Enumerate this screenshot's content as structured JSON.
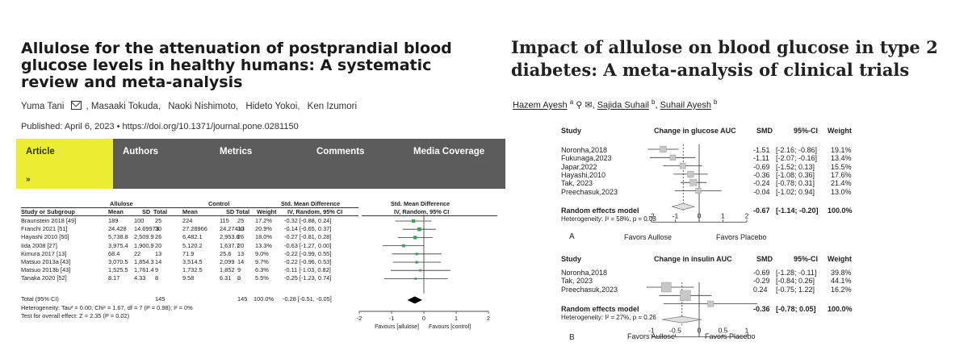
{
  "left": {
    "title": "Allulose for the attenuation of postprandial blood glucose levels in healthy humans: A systematic review and meta-analysis",
    "authors": [
      "Yuma Tani",
      "Masaaki Tokuda,",
      "Naoki Nishimoto,",
      "Hideto Yokoi,",
      "Ken Izumori"
    ],
    "published": "Published: April 6, 2023  •  https://doi.org/10.1371/journal.pone.0281150",
    "tabs": [
      {
        "label": "Article",
        "chevron": "»"
      },
      {
        "label": "Authors"
      },
      {
        "label": "Metrics"
      },
      {
        "label": "Comments"
      },
      {
        "label": "Media Coverage"
      }
    ],
    "forest": {
      "group_headers": {
        "allulose": "Allulose",
        "control": "Control",
        "smd": "Std. Mean Difference",
        "smd2": "Std. Mean Difference"
      },
      "columns": [
        "Study or Subgroup",
        "Mean",
        "SD",
        "Total",
        "Mean",
        "SD",
        "Total",
        "Weight",
        "IV, Random, 95% CI",
        "IV, Random, 95% CI"
      ],
      "rows": [
        {
          "study": "Braunstein 2018 [49]",
          "m1": "189",
          "sd1": "100",
          "n1": "25",
          "m2": "224",
          "sd2": "115",
          "n2": "25",
          "w": "17.2%",
          "ci": "-0.32 [-0.88, 0.24]"
        },
        {
          "study": "Franchi 2021 [51]",
          "m1": "24.428",
          "sd1": "14.69973",
          "n1": "30",
          "m2": "27.28966",
          "sd2": "24.27413",
          "n2": "30",
          "w": "20.9%",
          "ci": "-0.14 [-0.65, 0.37]"
        },
        {
          "study": "Hayashi 2010 [50]",
          "m1": "5,738.8",
          "sd1": "2,509.9",
          "n1": "26",
          "m2": "6,482.1",
          "sd2": "2,953.8",
          "n2": "26",
          "w": "18.0%",
          "ci": "-0.27 [-0.81, 0.28]"
        },
        {
          "study": "Iida 2008 [27]",
          "m1": "3,975.4",
          "sd1": "1,900.9",
          "n1": "20",
          "m2": "5,120.2",
          "sd2": "1,637.7",
          "n2": "20",
          "w": "13.3%",
          "ci": "-0.63 [-1.27, 0.00]"
        },
        {
          "study": "Kimura 2017 [13]",
          "m1": "68.4",
          "sd1": "22",
          "n1": "13",
          "m2": "71.9",
          "sd2": "25.6",
          "n2": "13",
          "w": "9.0%",
          "ci": "-0.22 [-0.99, 0.55]"
        },
        {
          "study": "Matsuo 2013a [43]",
          "m1": "3,070.5",
          "sd1": "1,854.3",
          "n1": "14",
          "m2": "3,514.5",
          "sd2": "2,099",
          "n2": "14",
          "w": "9.7%",
          "ci": "-0.22 [-0.96, 0.53]"
        },
        {
          "study": "Matsuo 2013b [43]",
          "m1": "1,525.5",
          "sd1": "1,761.4",
          "n1": "9",
          "m2": "1,732.5",
          "sd2": "1,852",
          "n2": "9",
          "w": "6.3%",
          "ci": "-0.11 [-1.03, 0.82]"
        },
        {
          "study": "Tanaka 2020 [52]",
          "m1": "8.17",
          "sd1": "4.33",
          "n1": "8",
          "m2": "9.58",
          "sd2": "6.31",
          "n2": "8",
          "w": "5.5%",
          "ci": "-0.25 [-1.23, 0.74]"
        }
      ],
      "total": {
        "label": "Total (95% CI)",
        "n1": "145",
        "n2": "145",
        "w": "100.0%",
        "ci": "-0.28 [-0.51, -0.05]"
      },
      "heterogeneity": "Heterogeneity: Tau² = 0.00; Chi² = 1.67, df = 7 (P = 0.98); I² = 0%",
      "overall_test": "Test for overall effect: Z = 2.35 (P = 0.02)",
      "axis_ticks": [
        "-2",
        "-1",
        "0",
        "1",
        "2"
      ],
      "favours_left": "Favours [allulose]",
      "favours_right": "Favours [control]"
    }
  },
  "right": {
    "title": "Impact of allulose on blood glucose in type 2 diabetes: A meta-analysis of clinical trials",
    "authors": [
      {
        "name": "Hazem Ayesh",
        "sup": "a"
      },
      {
        "name": "Sajida Suhail",
        "sup": "b"
      },
      {
        "name": "Suhail Ayesh",
        "sup": "b"
      }
    ],
    "panel_a": {
      "headers": {
        "study": "Study",
        "measure": "Change in glucose AUC",
        "smd": "SMD",
        "ci": "95%-CI",
        "weight": "Weight"
      },
      "rows": [
        {
          "study": "Noronha,2018",
          "smd": "-1.51",
          "ci": "[-2.16; -0.86]",
          "w": "19.1%"
        },
        {
          "study": "Fukunaga,2023",
          "smd": "-1.11",
          "ci": "[-2.07; -0.16]",
          "w": "13.4%"
        },
        {
          "study": "Japar,2022",
          "smd": "-0.69",
          "ci": "[-1.52; 0.13]",
          "w": "15.5%"
        },
        {
          "study": "Hayashi,2010",
          "smd": "-0.36",
          "ci": "[-1.08; 0.36]",
          "w": "17.6%"
        },
        {
          "study": "Tak, 2023",
          "smd": "-0.24",
          "ci": "[-0.78; 0.31]",
          "w": "21.4%"
        },
        {
          "study": "Preechasuk,2023",
          "smd": "-0.04",
          "ci": "[-1.02; 0.94]",
          "w": "13.0%"
        }
      ],
      "pooled": {
        "label": "Random effects model",
        "smd": "-0.67",
        "ci": "[-1.14; -0.20]",
        "w": "100.0%"
      },
      "heterogeneity": "Heterogeneity: I² = 58%, p = 0.03",
      "axis_ticks": [
        "-2",
        "-1",
        "0",
        "1",
        "2"
      ],
      "favours_left": "Favors Aullose",
      "favours_right": "Favors Placebo",
      "panel_label": "A"
    },
    "panel_b": {
      "headers": {
        "study": "Study",
        "measure": "Change in insulin AUC",
        "smd": "SMD",
        "ci": "95%-CI",
        "weight": "Weight"
      },
      "rows": [
        {
          "study": "Noronha,2018",
          "smd": "-0.69",
          "ci": "[-1.28; -0.11]",
          "w": "39.8%"
        },
        {
          "study": "Tak, 2023",
          "smd": "-0.29",
          "ci": "[-0.84; 0.26]",
          "w": "44.1%"
        },
        {
          "study": "Preechasuk,2023",
          "smd": "0.24",
          "ci": "[-0.75; 1.22]",
          "w": "16.2%"
        }
      ],
      "pooled": {
        "label": "Random effects model",
        "smd": "-0.36",
        "ci": "[-0.78; 0.05]",
        "w": "100.0%"
      },
      "heterogeneity": "Heterogeneity: I² = 27%, p = 0.26",
      "axis_ticks": [
        "-1",
        "-0.5",
        "0",
        "0.5",
        "1"
      ],
      "favours_left": "Favors Aullose",
      "favours_right": "Favors Placebo",
      "panel_label": "B"
    }
  },
  "chart_data": [
    {
      "type": "scatter",
      "title": "",
      "xlabel": "",
      "ylabel": "",
      "xlim": [
        -2,
        2
      ],
      "categories": [
        "Braunstein 2018 [49]",
        "Franchi 2021 [51]",
        "Hayashi 2010 [50]",
        "Iida 2008 [27]",
        "Kimura 2017 [13]",
        "Matsuo 2013a [43]",
        "Matsuo 2013b [43]",
        "Tanaka 2020 [52]"
      ],
      "estimates": [
        -0.32,
        -0.14,
        -0.27,
        -0.63,
        -0.22,
        -0.22,
        -0.11,
        -0.25
      ],
      "lower": [
        -0.88,
        -0.65,
        -0.81,
        -1.27,
        -0.99,
        -0.96,
        -1.03,
        -1.23
      ],
      "upper": [
        0.24,
        0.37,
        0.28,
        0.0,
        0.55,
        0.53,
        0.82,
        0.74
      ],
      "weights": [
        17.2,
        20.9,
        18.0,
        13.3,
        9.0,
        9.7,
        6.3,
        5.5
      ],
      "pooled": {
        "estimate": -0.28,
        "lower": -0.51,
        "upper": -0.05
      },
      "marker_color": "#2fa84f"
    },
    {
      "type": "scatter",
      "title": "",
      "xlabel": "",
      "ylabel": "",
      "xlim": [
        -2,
        2
      ],
      "categories": [
        "Noronha,2018",
        "Fukunaga,2023",
        "Japar,2022",
        "Hayashi,2010",
        "Tak, 2023",
        "Preechasuk,2023"
      ],
      "estimates": [
        -1.51,
        -1.11,
        -0.69,
        -0.36,
        -0.24,
        -0.04
      ],
      "lower": [
        -2.16,
        -2.07,
        -1.52,
        -1.08,
        -0.78,
        -1.02
      ],
      "upper": [
        -0.86,
        -0.16,
        0.13,
        0.36,
        0.31,
        0.94
      ],
      "weights": [
        19.1,
        13.4,
        15.5,
        17.6,
        21.4,
        13.0
      ],
      "pooled": {
        "estimate": -0.67,
        "lower": -1.14,
        "upper": -0.2
      }
    },
    {
      "type": "scatter",
      "title": "",
      "xlabel": "",
      "ylabel": "",
      "xlim": [
        -1,
        1
      ],
      "categories": [
        "Noronha,2018",
        "Tak, 2023",
        "Preechasuk,2023"
      ],
      "estimates": [
        -0.69,
        -0.29,
        0.24
      ],
      "lower": [
        -1.28,
        -0.84,
        -0.75
      ],
      "upper": [
        -0.11,
        0.26,
        1.22
      ],
      "weights": [
        39.8,
        44.1,
        16.2
      ],
      "pooled": {
        "estimate": -0.36,
        "lower": -0.78,
        "upper": 0.05
      }
    }
  ]
}
